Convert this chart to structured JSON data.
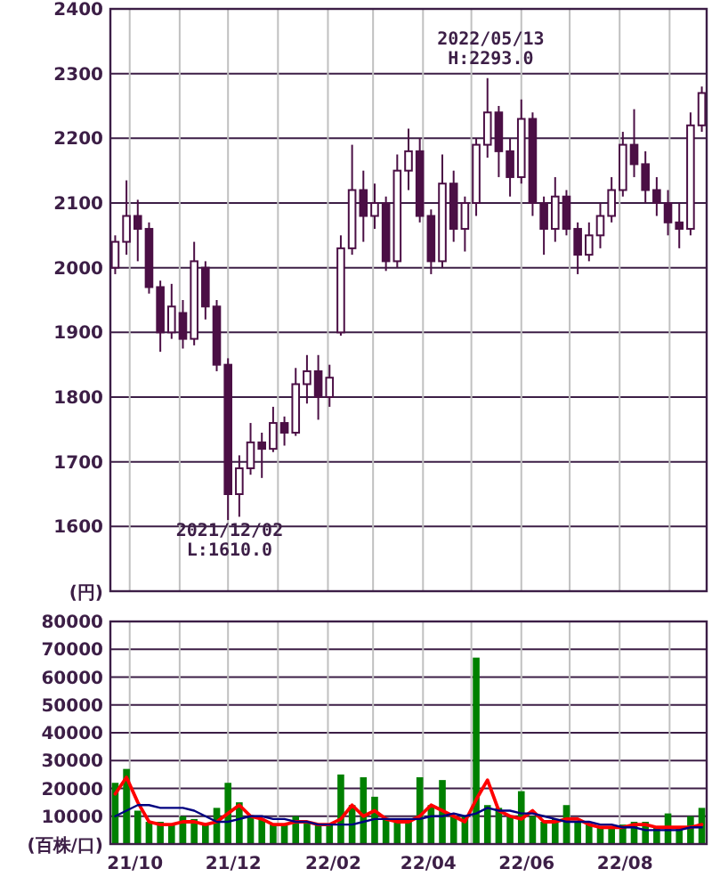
{
  "chart_data": [
    {
      "type": "candlestick",
      "color": "#4b0f45",
      "ylabel": "(円)",
      "grid": true,
      "tick_labels": "y",
      "xlim": [
        "2021-09-19",
        "2022-09-24"
      ],
      "ylim": [
        1500,
        2400
      ],
      "yticks": [
        1600,
        1700,
        1800,
        1900,
        2000,
        2100,
        2200,
        2300,
        2400
      ],
      "xticks": [
        {
          "value": "2021-10-01",
          "label": null
        },
        {
          "value": "2021-11-01",
          "label": null
        },
        {
          "value": "2021-12-01",
          "label": null
        },
        {
          "value": "2022-01-01",
          "label": null
        },
        {
          "value": "2022-02-01",
          "label": null
        },
        {
          "value": "2022-03-01",
          "label": null
        },
        {
          "value": "2022-04-01",
          "label": null
        },
        {
          "value": "2022-05-01",
          "label": null
        },
        {
          "value": "2022-06-01",
          "label": null
        },
        {
          "value": "2022-07-01",
          "label": null
        },
        {
          "value": "2022-08-01",
          "label": null
        },
        {
          "value": "2022-09-01",
          "label": null
        }
      ],
      "x": [
        "2021-09-22",
        "2021-09-29",
        "2021-10-06",
        "2021-10-13",
        "2021-10-20",
        "2021-10-27",
        "2021-11-03",
        "2021-11-10",
        "2021-11-17",
        "2021-11-24",
        "2021-12-01",
        "2021-12-08",
        "2021-12-15",
        "2021-12-22",
        "2021-12-29",
        "2022-01-05",
        "2022-01-12",
        "2022-01-19",
        "2022-01-26",
        "2022-02-02",
        "2022-02-09",
        "2022-02-16",
        "2022-02-23",
        "2022-03-02",
        "2022-03-09",
        "2022-03-16",
        "2022-03-23",
        "2022-03-30",
        "2022-04-06",
        "2022-04-13",
        "2022-04-20",
        "2022-04-27",
        "2022-05-04",
        "2022-05-11",
        "2022-05-18",
        "2022-05-25",
        "2022-06-01",
        "2022-06-08",
        "2022-06-15",
        "2022-06-22",
        "2022-06-29",
        "2022-07-06",
        "2022-07-13",
        "2022-07-20",
        "2022-07-27",
        "2022-08-03",
        "2022-08-10",
        "2022-08-17",
        "2022-08-24",
        "2022-08-31",
        "2022-09-07",
        "2022-09-14",
        "2022-09-21"
      ],
      "ohlc": [
        [
          2000,
          2050,
          1990,
          2040
        ],
        [
          2040,
          2135,
          2020,
          2080
        ],
        [
          2080,
          2105,
          2010,
          2060
        ],
        [
          2060,
          2070,
          1960,
          1970
        ],
        [
          1970,
          1980,
          1870,
          1900
        ],
        [
          1900,
          1975,
          1890,
          1940
        ],
        [
          1930,
          1950,
          1875,
          1890
        ],
        [
          1890,
          2040,
          1880,
          2010
        ],
        [
          2000,
          2010,
          1920,
          1940
        ],
        [
          1940,
          1950,
          1840,
          1850
        ],
        [
          1850,
          1860,
          1610,
          1650
        ],
        [
          1650,
          1710,
          1615,
          1690
        ],
        [
          1690,
          1760,
          1680,
          1730
        ],
        [
          1730,
          1745,
          1675,
          1720
        ],
        [
          1720,
          1785,
          1715,
          1760
        ],
        [
          1760,
          1770,
          1725,
          1745
        ],
        [
          1745,
          1845,
          1740,
          1820
        ],
        [
          1820,
          1865,
          1790,
          1840
        ],
        [
          1840,
          1865,
          1765,
          1800
        ],
        [
          1800,
          1850,
          1785,
          1830
        ],
        [
          1900,
          2050,
          1895,
          2030
        ],
        [
          2030,
          2190,
          2020,
          2120
        ],
        [
          2120,
          2150,
          2040,
          2080
        ],
        [
          2080,
          2130,
          2060,
          2100
        ],
        [
          2100,
          2110,
          1995,
          2010
        ],
        [
          2010,
          2175,
          2000,
          2150
        ],
        [
          2150,
          2215,
          2120,
          2180
        ],
        [
          2180,
          2200,
          2070,
          2080
        ],
        [
          2080,
          2090,
          1990,
          2010
        ],
        [
          2010,
          2175,
          2000,
          2130
        ],
        [
          2130,
          2150,
          2040,
          2060
        ],
        [
          2060,
          2110,
          2025,
          2100
        ],
        [
          2100,
          2200,
          2080,
          2190
        ],
        [
          2190,
          2293,
          2170,
          2240
        ],
        [
          2240,
          2250,
          2140,
          2180
        ],
        [
          2180,
          2200,
          2110,
          2140
        ],
        [
          2140,
          2260,
          2130,
          2230
        ],
        [
          2230,
          2240,
          2080,
          2100
        ],
        [
          2100,
          2110,
          2020,
          2060
        ],
        [
          2060,
          2140,
          2040,
          2110
        ],
        [
          2110,
          2120,
          2050,
          2060
        ],
        [
          2060,
          2070,
          1990,
          2020
        ],
        [
          2020,
          2070,
          2010,
          2050
        ],
        [
          2050,
          2100,
          2030,
          2080
        ],
        [
          2080,
          2140,
          2070,
          2120
        ],
        [
          2120,
          2210,
          2110,
          2190
        ],
        [
          2190,
          2245,
          2140,
          2160
        ],
        [
          2160,
          2180,
          2100,
          2120
        ],
        [
          2120,
          2140,
          2080,
          2100
        ],
        [
          2100,
          2120,
          2050,
          2070
        ],
        [
          2070,
          2100,
          2030,
          2060
        ],
        [
          2060,
          2240,
          2050,
          2220
        ],
        [
          2220,
          2280,
          2210,
          2270
        ]
      ],
      "annotations": [
        {
          "text": "2021/12/02\nL:1610.0",
          "x": "2021-12-02",
          "y": 1610
        },
        {
          "text": "2022/05/13\nH:2293.0",
          "x": "2022-05-13",
          "y": 2293
        }
      ]
    },
    {
      "type": "bar",
      "ylabel": "(百株/口)",
      "grid": true,
      "xlim": [
        "2021-09-19",
        "2022-09-24"
      ],
      "ylim": [
        0,
        80000
      ],
      "yticks": [
        10000,
        20000,
        30000,
        40000,
        50000,
        60000,
        70000,
        80000
      ],
      "xticks": [
        {
          "value": "2021-10-01",
          "label": "21/10"
        },
        {
          "value": "2021-11-01",
          "label": null
        },
        {
          "value": "2021-12-01",
          "label": "21/12"
        },
        {
          "value": "2022-01-01",
          "label": null
        },
        {
          "value": "2022-02-01",
          "label": "22/02"
        },
        {
          "value": "2022-03-01",
          "label": null
        },
        {
          "value": "2022-04-01",
          "label": "22/04"
        },
        {
          "value": "2022-05-01",
          "label": null
        },
        {
          "value": "2022-06-01",
          "label": "22/06"
        },
        {
          "value": "2022-07-01",
          "label": null
        },
        {
          "value": "2022-08-01",
          "label": "22/08"
        },
        {
          "value": "2022-09-01",
          "label": null
        }
      ],
      "x": [
        "2021-09-22",
        "2021-09-29",
        "2021-10-06",
        "2021-10-13",
        "2021-10-20",
        "2021-10-27",
        "2021-11-03",
        "2021-11-10",
        "2021-11-17",
        "2021-11-24",
        "2021-12-01",
        "2021-12-08",
        "2021-12-15",
        "2021-12-22",
        "2021-12-29",
        "2022-01-05",
        "2022-01-12",
        "2022-01-19",
        "2022-01-26",
        "2022-02-02",
        "2022-02-09",
        "2022-02-16",
        "2022-02-23",
        "2022-03-02",
        "2022-03-09",
        "2022-03-16",
        "2022-03-23",
        "2022-03-30",
        "2022-04-06",
        "2022-04-13",
        "2022-04-20",
        "2022-04-27",
        "2022-05-04",
        "2022-05-11",
        "2022-05-18",
        "2022-05-25",
        "2022-06-01",
        "2022-06-08",
        "2022-06-15",
        "2022-06-22",
        "2022-06-29",
        "2022-07-06",
        "2022-07-13",
        "2022-07-20",
        "2022-07-27",
        "2022-08-03",
        "2022-08-10",
        "2022-08-17",
        "2022-08-24",
        "2022-08-31",
        "2022-09-07",
        "2022-09-14",
        "2022-09-21"
      ],
      "series": [
        {
          "color": "#008000",
          "values": [
            22000,
            27000,
            12000,
            8000,
            8000,
            7000,
            10000,
            9000,
            7000,
            13000,
            22000,
            15000,
            10000,
            9000,
            7000,
            7000,
            10000,
            8000,
            7000,
            7000,
            25000,
            14000,
            24000,
            17000,
            9000,
            9000,
            9000,
            24000,
            14000,
            23000,
            10000,
            10000,
            67000,
            14000,
            13000,
            10000,
            19000,
            10000,
            8000,
            9000,
            14000,
            8000,
            7000,
            6000,
            6000,
            7000,
            8000,
            8000,
            6000,
            11000,
            6000,
            10000,
            13000
          ]
        },
        {
          "type": "line",
          "color": "#ff0000",
          "values": [
            18000,
            24000,
            15000,
            8000,
            7000,
            7000,
            8000,
            8000,
            7000,
            8000,
            11000,
            14000,
            10000,
            9000,
            7000,
            7000,
            8000,
            8000,
            7000,
            7000,
            9000,
            14000,
            10000,
            12000,
            9000,
            8000,
            8000,
            10000,
            14000,
            12000,
            10000,
            8000,
            16000,
            23000,
            12000,
            10000,
            9000,
            12000,
            8000,
            8000,
            9000,
            9000,
            7000,
            6000,
            6000,
            6000,
            7000,
            7000,
            6000,
            6000,
            6000,
            6000,
            7000
          ]
        },
        {
          "type": "line",
          "color": "#000080",
          "values": [
            10000,
            12000,
            14000,
            14000,
            13000,
            13000,
            13000,
            12000,
            10000,
            8000,
            8000,
            9000,
            10000,
            10000,
            9000,
            9000,
            8000,
            8000,
            7000,
            7000,
            7000,
            7000,
            8000,
            9000,
            9000,
            9000,
            9000,
            9000,
            10000,
            10000,
            11000,
            10000,
            11000,
            13000,
            12000,
            12000,
            11000,
            11000,
            10000,
            9000,
            8000,
            8000,
            8000,
            7000,
            7000,
            6000,
            6000,
            5000,
            5000,
            5000,
            5000,
            6000,
            6000
          ]
        }
      ]
    }
  ]
}
